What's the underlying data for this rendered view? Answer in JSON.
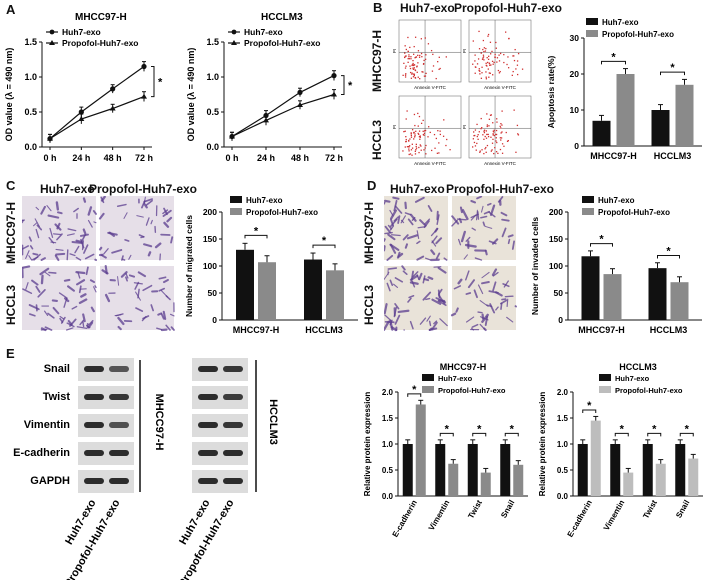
{
  "panels": {
    "A": "A",
    "B": "B",
    "C": "C",
    "D": "D",
    "E": "E"
  },
  "colors": {
    "black": "#111111",
    "gray": "#8a8a8a",
    "light": "#bdbdbd",
    "stain": "#5b3d8f",
    "flow": "#d03030"
  },
  "panelA": {
    "legend": [
      "Huh7-exo",
      "Propofol-Huh7-exo"
    ],
    "charts": [
      {
        "title": "MHCC97-H"
      },
      {
        "title": "HCCLM3"
      }
    ],
    "star": "*"
  },
  "panelB": {
    "col_labels": [
      "Huh7-exo",
      "Propofol-Huh7-exo"
    ],
    "row_labels": [
      "MHCC97-H",
      "HCCL3"
    ],
    "axis_x": "Annexin V-FITC",
    "axis_y": "PI",
    "star": "*"
  },
  "panelC": {
    "col_labels": [
      "Huh7-exo",
      "Propofol-Huh7-exo"
    ],
    "row_labels": [
      "MHCC97-H",
      "HCCL3"
    ],
    "star": "*"
  },
  "panelD": {
    "col_labels": [
      "Huh7-exo",
      "Propofol-Huh7-exo"
    ],
    "row_labels": [
      "MHCC97-H",
      "HCCL3"
    ],
    "star": "*"
  },
  "panelE": {
    "proteins": [
      "Snail",
      "Twist",
      "Vimentin",
      "E-cadherin",
      "GAPDH"
    ],
    "cell_lines": [
      "MHCC97-H",
      "HCCLM3"
    ],
    "lanes": [
      "Huh7-exo",
      "Propofol-Huh7-exo"
    ],
    "star": "*"
  },
  "chart_data": [
    {
      "id": "A1",
      "type": "line",
      "title": "MHCC97-H",
      "ylabel": "OD value (λ = 490 nm)",
      "xlabel": "",
      "categories": [
        "0 h",
        "24 h",
        "48 h",
        "72 h"
      ],
      "ylim": [
        0,
        1.5
      ],
      "yticks": [
        0.0,
        0.5,
        1.0,
        1.5
      ],
      "series": [
        {
          "name": "Huh7-exo",
          "values": [
            0.12,
            0.5,
            0.83,
            1.15
          ]
        },
        {
          "name": "Propofol-Huh7-exo",
          "values": [
            0.12,
            0.4,
            0.55,
            0.72
          ]
        }
      ]
    },
    {
      "id": "A2",
      "type": "line",
      "title": "HCCLM3",
      "ylabel": "OD value (λ = 490 nm)",
      "xlabel": "",
      "categories": [
        "0 h",
        "24 h",
        "48 h",
        "72 h"
      ],
      "ylim": [
        0,
        1.5
      ],
      "yticks": [
        0.0,
        0.5,
        1.0,
        1.5
      ],
      "series": [
        {
          "name": "Huh7-exo",
          "values": [
            0.15,
            0.45,
            0.78,
            1.02
          ]
        },
        {
          "name": "Propofol-Huh7-exo",
          "values": [
            0.15,
            0.38,
            0.6,
            0.75
          ]
        }
      ]
    },
    {
      "id": "B",
      "type": "bar",
      "title": "",
      "ylabel": "Apoptosis rate(%)",
      "xlabel": "",
      "categories": [
        "MHCC97-H",
        "HCCLM3"
      ],
      "ylim": [
        0,
        30
      ],
      "yticks": [
        0,
        10,
        20,
        30
      ],
      "series": [
        {
          "name": "Huh7-exo",
          "values": [
            7,
            10
          ]
        },
        {
          "name": "Propofol-Huh7-exo",
          "values": [
            20,
            17
          ]
        }
      ]
    },
    {
      "id": "C",
      "type": "bar",
      "title": "",
      "ylabel": "Number of migrated cells",
      "xlabel": "",
      "categories": [
        "MHCC97-H",
        "HCCLM3"
      ],
      "ylim": [
        0,
        200
      ],
      "yticks": [
        0,
        50,
        100,
        150,
        200
      ],
      "series": [
        {
          "name": "Huh7-exo",
          "values": [
            130,
            112
          ]
        },
        {
          "name": "Propofol-Huh7-exo",
          "values": [
            107,
            92
          ]
        }
      ]
    },
    {
      "id": "D",
      "type": "bar",
      "title": "",
      "ylabel": "Number of invaded cells",
      "xlabel": "",
      "categories": [
        "MHCC97-H",
        "HCCLM3"
      ],
      "ylim": [
        0,
        200
      ],
      "yticks": [
        0,
        50,
        100,
        150,
        200
      ],
      "series": [
        {
          "name": "Huh7-exo",
          "values": [
            118,
            96
          ]
        },
        {
          "name": "Propofol-Huh7-exo",
          "values": [
            85,
            70
          ]
        }
      ]
    },
    {
      "id": "E1",
      "type": "bar",
      "title": "MHCC97-H",
      "ylabel": "Relative protein expression",
      "xlabel": "",
      "categories": [
        "E-cadherin",
        "Vimentin",
        "Twist",
        "Snail"
      ],
      "ylim": [
        0,
        2.0
      ],
      "yticks": [
        0.0,
        0.5,
        1.0,
        1.5,
        2.0
      ],
      "series": [
        {
          "name": "Huh7-exo",
          "values": [
            1.0,
            1.0,
            1.0,
            1.0
          ]
        },
        {
          "name": "Propofol-Huh7-exo",
          "values": [
            1.76,
            0.62,
            0.45,
            0.6
          ]
        }
      ]
    },
    {
      "id": "E2",
      "type": "bar",
      "title": "HCCLM3",
      "ylabel": "Relative protein expression",
      "xlabel": "",
      "categories": [
        "E-cadherin",
        "Vimentin",
        "Twist",
        "Snail"
      ],
      "ylim": [
        0,
        2.0
      ],
      "yticks": [
        0.0,
        0.5,
        1.0,
        1.5,
        2.0
      ],
      "series": [
        {
          "name": "Huh7-exo",
          "values": [
            1.0,
            1.0,
            1.0,
            1.0
          ]
        },
        {
          "name": "Propofol-Huh7-exo",
          "values": [
            1.45,
            0.45,
            0.62,
            0.72
          ]
        }
      ]
    }
  ]
}
